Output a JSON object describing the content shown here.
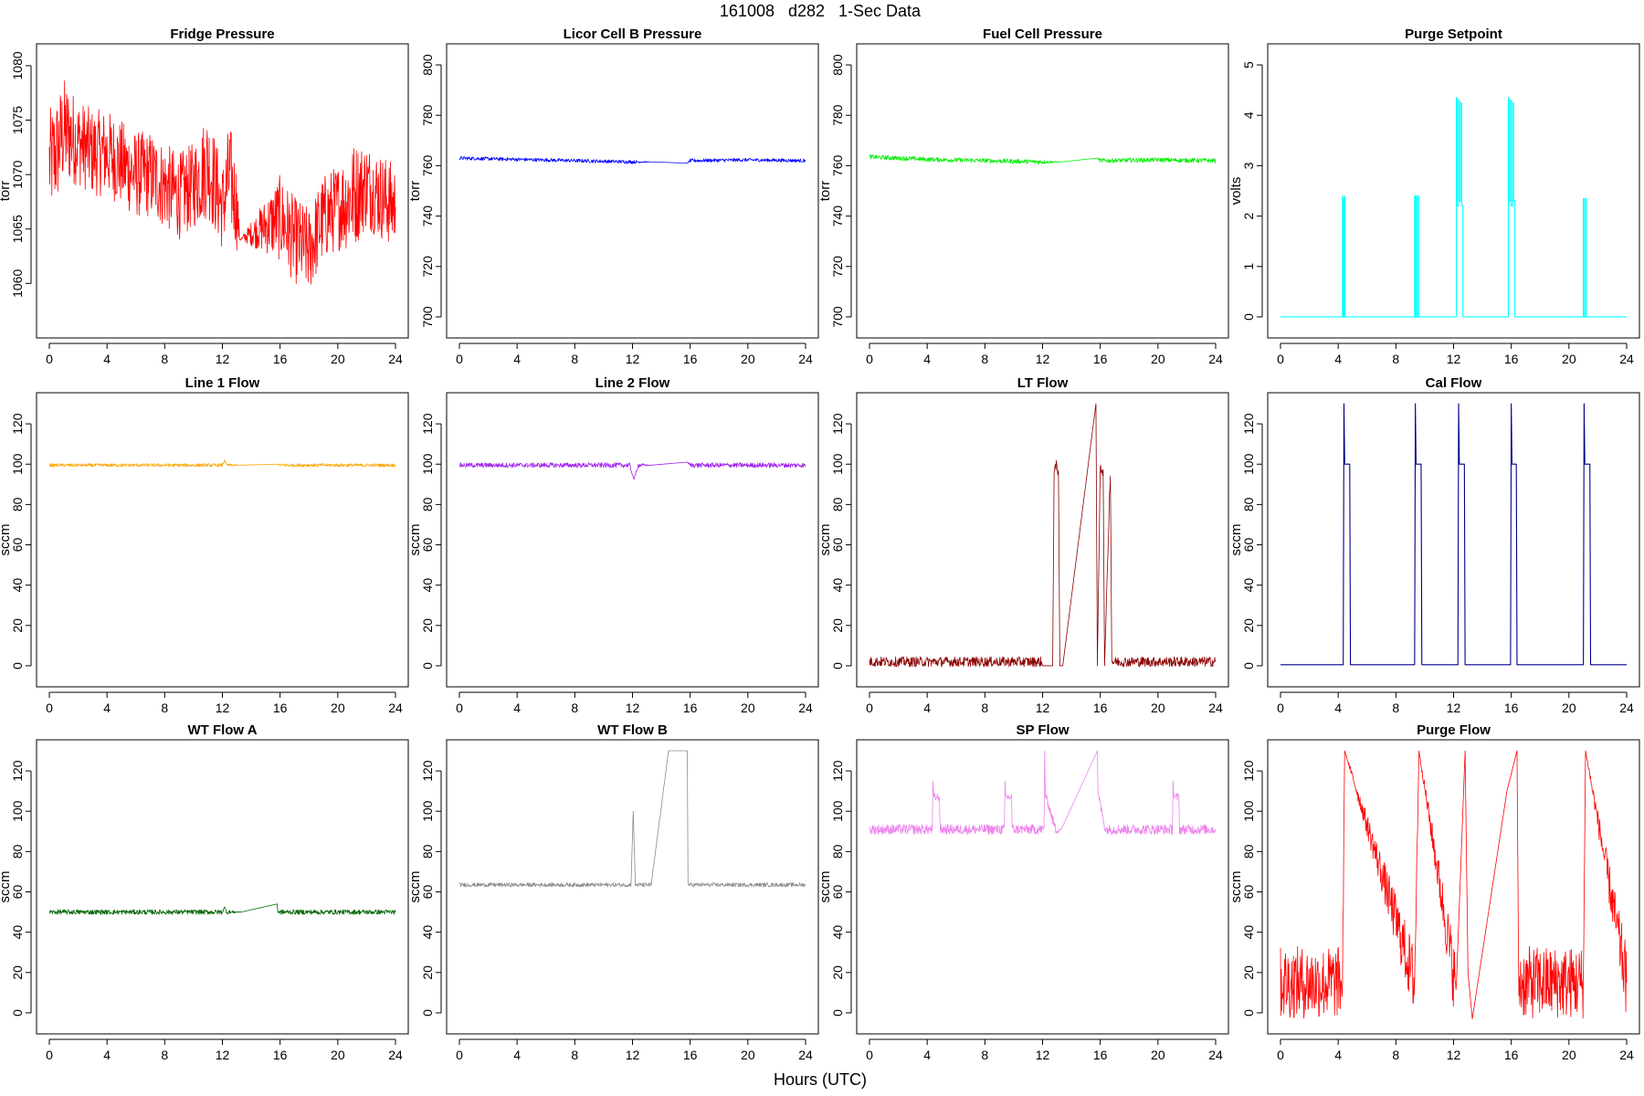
{
  "figure": {
    "title": "161008   d282   1-Sec Data",
    "xlabel": "Hours (UTC)"
  },
  "chart_data": [
    {
      "type": "line",
      "title": "Fridge Pressure",
      "ylabel": "torr",
      "color": "#ff0000",
      "xlim": [
        0,
        24
      ],
      "ylim": [
        1056,
        1081
      ],
      "xticks": [
        "0",
        "4",
        "8",
        "12",
        "16",
        "20",
        "24"
      ],
      "yticks": [
        "1060",
        "1065",
        "1070",
        "1075",
        "1080"
      ],
      "series": [
        {
          "x": [
            0,
            0.5,
            1,
            2,
            3,
            4,
            5,
            6,
            7,
            8,
            9,
            10,
            11,
            12,
            12.5,
            13,
            13.2,
            16,
            17,
            18,
            19,
            20,
            21,
            22,
            23,
            24
          ],
          "y": [
            1071,
            1072,
            1074,
            1073,
            1072,
            1072,
            1071,
            1070,
            1070,
            1069,
            1068,
            1069,
            1071,
            1067,
            1070,
            1067,
            1064,
            1066,
            1064,
            1063,
            1066,
            1067,
            1068,
            1069,
            1068,
            1067
          ],
          "noise": [
            5,
            5,
            5,
            4,
            4,
            4,
            4,
            4,
            4,
            4,
            4,
            4,
            5,
            4,
            5,
            4,
            0,
            4,
            4,
            4,
            4,
            4,
            5,
            4,
            4,
            4
          ]
        }
      ]
    },
    {
      "type": "line",
      "title": "Licor Cell B Pressure",
      "ylabel": "torr",
      "color": "#0000ff",
      "xlim": [
        0,
        24
      ],
      "ylim": [
        696,
        804
      ],
      "xticks": [
        "0",
        "4",
        "8",
        "12",
        "16",
        "20",
        "24"
      ],
      "yticks": [
        "700",
        "720",
        "740",
        "760",
        "780",
        "800"
      ],
      "series": [
        {
          "x": [
            0,
            4,
            8,
            12,
            13.3,
            15.8,
            16,
            20,
            24
          ],
          "y": [
            763,
            762.5,
            762,
            761.5,
            761.5,
            761,
            762,
            762.3,
            762
          ],
          "noise": [
            0.7,
            0.7,
            0.7,
            0.7,
            0,
            0,
            0.7,
            0.7,
            0.7
          ]
        }
      ]
    },
    {
      "type": "line",
      "title": "Fuel Cell Pressure",
      "ylabel": "torr",
      "color": "#00ee00",
      "xlim": [
        0,
        24
      ],
      "ylim": [
        696,
        804
      ],
      "xticks": [
        "0",
        "4",
        "8",
        "12",
        "16",
        "20",
        "24"
      ],
      "yticks": [
        "700",
        "720",
        "740",
        "760",
        "780",
        "800"
      ],
      "series": [
        {
          "x": [
            0,
            4,
            8,
            12,
            13.3,
            15.8,
            16,
            20,
            24
          ],
          "y": [
            763.5,
            762.5,
            762,
            761.5,
            761.5,
            763,
            762,
            762.3,
            762
          ],
          "noise": [
            0.9,
            0.9,
            0.9,
            0.9,
            0,
            0,
            0.9,
            0.9,
            0.9
          ]
        }
      ]
    },
    {
      "type": "line",
      "title": "Purge Setpoint",
      "ylabel": "volts",
      "color": "#00ffff",
      "xlim": [
        0,
        24
      ],
      "ylim": [
        -0.2,
        5.2
      ],
      "xticks": [
        "0",
        "4",
        "8",
        "12",
        "16",
        "20",
        "24"
      ],
      "yticks": [
        "0",
        "1",
        "2",
        "3",
        "4",
        "5"
      ],
      "series": [
        {
          "x": [
            0,
            4.3,
            4.3,
            4.32,
            4.32,
            4.38,
            4.38,
            4.4,
            4.4,
            4.45,
            4.45,
            4.47,
            4.47,
            9.3,
            9.3,
            9.35,
            9.35,
            9.42,
            9.42,
            9.45,
            9.45,
            9.55,
            9.55,
            9.58,
            9.58,
            12.2,
            12.2,
            12.25,
            12.25,
            12.35,
            12.35,
            12.4,
            12.4,
            12.5,
            12.5,
            12.55,
            12.55,
            12.65,
            12.65,
            12.7,
            12.7,
            15.8,
            15.8,
            15.85,
            15.85,
            15.95,
            15.95,
            16,
            16,
            16.1,
            16.1,
            16.15,
            16.15,
            16.25,
            16.25,
            16.3,
            16.3,
            21.0,
            21.0,
            21.05,
            21.05,
            21.15,
            21.15,
            21.2,
            21.2,
            24
          ],
          "y": [
            0,
            0,
            2.4,
            2.4,
            0,
            0,
            2.35,
            2.35,
            0,
            0,
            2.4,
            2.4,
            0,
            0,
            2.4,
            2.4,
            0,
            0,
            2.4,
            2.4,
            0,
            0,
            2.4,
            2.4,
            0,
            0,
            4.35,
            4.35,
            2.2,
            2.2,
            4.3,
            4.3,
            2.3,
            2.3,
            4.25,
            4.25,
            2.2,
            2.2,
            0,
            0,
            0,
            0,
            4.35,
            4.35,
            2.3,
            2.3,
            4.3,
            4.3,
            2.2,
            2.2,
            4.25,
            4.25,
            2.3,
            2.3,
            0,
            0,
            0,
            0,
            2.35,
            2.35,
            0,
            0,
            2.35,
            2.35,
            0,
            0
          ]
        }
      ]
    },
    {
      "type": "line",
      "title": "Line 1 Flow",
      "ylabel": "sccm",
      "color": "#ffa500",
      "xlim": [
        0,
        24
      ],
      "ylim": [
        -5,
        130
      ],
      "xticks": [
        "0",
        "4",
        "8",
        "12",
        "16",
        "20",
        "24"
      ],
      "yticks": [
        "0",
        "20",
        "40",
        "60",
        "80",
        "100",
        "120"
      ],
      "series": [
        {
          "x": [
            0,
            6,
            12,
            12.15,
            12.3,
            13.3,
            15.8,
            16,
            20,
            24
          ],
          "y": [
            99.5,
            99.5,
            99.5,
            102,
            99.5,
            99.5,
            100,
            99.5,
            99.5,
            99.5
          ],
          "noise": [
            0.8,
            0.8,
            0.8,
            0,
            0.8,
            0,
            0,
            0.8,
            0.8,
            0.8
          ]
        }
      ]
    },
    {
      "type": "line",
      "title": "Line 2 Flow",
      "ylabel": "sccm",
      "color": "#a020f0",
      "xlim": [
        0,
        24
      ],
      "ylim": [
        -5,
        130
      ],
      "xticks": [
        "0",
        "4",
        "8",
        "12",
        "16",
        "20",
        "24"
      ],
      "yticks": [
        "0",
        "20",
        "40",
        "60",
        "80",
        "100",
        "120"
      ],
      "series": [
        {
          "x": [
            0,
            6,
            11.8,
            12.1,
            12.4,
            13.3,
            15.8,
            16,
            20,
            24
          ],
          "y": [
            99.5,
            99.5,
            99.5,
            92.5,
            99.5,
            99.5,
            101,
            99.5,
            99.5,
            99.5
          ],
          "noise": [
            1.2,
            1.2,
            1.2,
            0,
            1.2,
            0,
            0,
            1.2,
            1.2,
            1.2
          ]
        }
      ]
    },
    {
      "type": "line",
      "title": "LT Flow",
      "ylabel": "sccm",
      "color": "#8b0000",
      "xlim": [
        0,
        24
      ],
      "ylim": [
        -5,
        130
      ],
      "xticks": [
        "0",
        "4",
        "8",
        "12",
        "16",
        "20",
        "24"
      ],
      "yticks": [
        "0",
        "20",
        "40",
        "60",
        "80",
        "100",
        "120"
      ],
      "series": [
        {
          "x": [
            0,
            4,
            8,
            11.9,
            12,
            12.7,
            12.8,
            13.1,
            13.2,
            13.4,
            15.7,
            15.8,
            16,
            16.2,
            16.3,
            16.7,
            16.8,
            20,
            24
          ],
          "y": [
            2,
            2,
            2,
            2,
            0,
            0,
            98,
            98,
            0,
            0,
            130,
            0,
            98,
            98,
            0,
            98,
            2,
            2,
            2
          ],
          "noise": [
            2.5,
            2.5,
            2.5,
            2.5,
            0,
            0,
            4,
            4,
            0,
            0,
            0,
            0,
            4,
            4,
            0,
            4,
            2.5,
            2.5,
            2.5
          ]
        }
      ]
    },
    {
      "type": "line",
      "title": "Cal Flow",
      "ylabel": "sccm",
      "color": "#00008b",
      "xlim": [
        0,
        24
      ],
      "ylim": [
        -5,
        130
      ],
      "xticks": [
        "0",
        "4",
        "8",
        "12",
        "16",
        "20",
        "24"
      ],
      "yticks": [
        "0",
        "20",
        "40",
        "60",
        "80",
        "100",
        "120"
      ],
      "series": [
        {
          "x": [
            0,
            4.35,
            4.4,
            4.45,
            4.8,
            4.85,
            9.3,
            9.35,
            9.4,
            9.75,
            9.8,
            12.3,
            12.35,
            12.4,
            12.75,
            12.8,
            15.95,
            16,
            16.05,
            16.35,
            16.4,
            21.0,
            21.05,
            21.1,
            21.45,
            21.5,
            24
          ],
          "y": [
            0.5,
            0.5,
            130,
            100,
            100,
            0.5,
            0.5,
            130,
            100,
            100,
            0.5,
            0.5,
            130,
            100,
            100,
            0.5,
            0.5,
            130,
            100,
            100,
            0.5,
            0.5,
            130,
            100,
            100,
            0.5,
            0.5
          ]
        }
      ]
    },
    {
      "type": "line",
      "title": "WT Flow A",
      "ylabel": "sccm",
      "color": "#006400",
      "xlim": [
        0,
        24
      ],
      "ylim": [
        -5,
        130
      ],
      "xticks": [
        "0",
        "4",
        "8",
        "12",
        "16",
        "20",
        "24"
      ],
      "yticks": [
        "0",
        "20",
        "40",
        "60",
        "80",
        "100",
        "120"
      ],
      "series": [
        {
          "x": [
            0,
            6,
            12,
            12.15,
            12.3,
            13.3,
            15.8,
            15.85,
            20,
            24
          ],
          "y": [
            50,
            50,
            50,
            52.5,
            50,
            50,
            54,
            50,
            50,
            50
          ],
          "noise": [
            1.2,
            1.2,
            1.2,
            0,
            1.2,
            0,
            0,
            1.2,
            1.2,
            1.2
          ]
        }
      ]
    },
    {
      "type": "line",
      "title": "WT Flow B",
      "ylabel": "sccm",
      "color": "#8c8c8c",
      "xlim": [
        0,
        24
      ],
      "ylim": [
        -5,
        130
      ],
      "xticks": [
        "0",
        "4",
        "8",
        "12",
        "16",
        "20",
        "24"
      ],
      "yticks": [
        "0",
        "20",
        "40",
        "60",
        "80",
        "100",
        "120"
      ],
      "series": [
        {
          "x": [
            0,
            6,
            11.9,
            12.05,
            12.2,
            13.3,
            14.5,
            15.8,
            15.85,
            20,
            24
          ],
          "y": [
            63.5,
            63.5,
            63.5,
            100,
            63.5,
            63.5,
            130,
            130,
            63.5,
            63.5,
            63.5
          ],
          "noise": [
            1,
            1,
            1,
            0,
            1,
            1,
            0,
            0,
            1,
            1,
            1
          ]
        }
      ]
    },
    {
      "type": "line",
      "title": "SP Flow",
      "ylabel": "sccm",
      "color": "#ee82ee",
      "xlim": [
        0,
        24
      ],
      "ylim": [
        -5,
        130
      ],
      "xticks": [
        "0",
        "4",
        "8",
        "12",
        "16",
        "20",
        "24"
      ],
      "yticks": [
        "0",
        "20",
        "40",
        "60",
        "80",
        "100",
        "120"
      ],
      "series": [
        {
          "x": [
            0,
            4.35,
            4.4,
            4.45,
            4.85,
            4.9,
            9.35,
            9.4,
            9.45,
            9.85,
            9.9,
            12.1,
            12.15,
            12.2,
            12.25,
            12.9,
            13.0,
            13.3,
            15.8,
            15.85,
            15.9,
            16.35,
            16.4,
            21.0,
            21.05,
            21.1,
            21.45,
            21.5,
            24
          ],
          "y": [
            91,
            91,
            115,
            107,
            107,
            91,
            91,
            115,
            107,
            107,
            91,
            91,
            130,
            107,
            107,
            91,
            91,
            91,
            130,
            107,
            107,
            91,
            91,
            91,
            115,
            107,
            107,
            91,
            91
          ],
          "noise": [
            2.5,
            2.5,
            0,
            2,
            2,
            2.5,
            2.5,
            0,
            2,
            2,
            2.5,
            2.5,
            0,
            2,
            2,
            2.5,
            2.5,
            0,
            0,
            2,
            2,
            2.5,
            2.5,
            2.5,
            0,
            2,
            2,
            2.5,
            2.5
          ]
        }
      ]
    },
    {
      "type": "line",
      "title": "Purge Flow",
      "ylabel": "sccm",
      "color": "#ff0000",
      "xlim": [
        0,
        24
      ],
      "ylim": [
        -5,
        130
      ],
      "xticks": [
        "0",
        "4",
        "8",
        "12",
        "16",
        "20",
        "24"
      ],
      "yticks": [
        "0",
        "20",
        "40",
        "60",
        "80",
        "100",
        "120"
      ],
      "series": [
        {
          "x": [
            0,
            4.3,
            4.45,
            9.3,
            9.6,
            12.1,
            12.2,
            12.8,
            13.0,
            13.3,
            15.7,
            16.4,
            16.5,
            21.0,
            21.15,
            24
          ],
          "y": [
            15,
            15,
            130,
            15,
            130,
            15,
            15,
            130,
            20,
            -3,
            110,
            130,
            15,
            15,
            130,
            15
          ],
          "noise": [
            18,
            18,
            0,
            18,
            0,
            18,
            0,
            0,
            0,
            0,
            0,
            0,
            18,
            18,
            0,
            18
          ]
        }
      ]
    }
  ]
}
